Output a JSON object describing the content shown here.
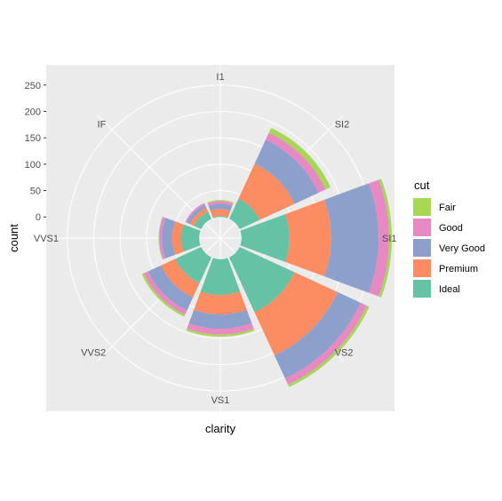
{
  "chart_data": {
    "type": "bar",
    "coordinate_system": "polar",
    "stacked": true,
    "categories": [
      "I1",
      "SI2",
      "SI1",
      "VS2",
      "VS1",
      "VVS2",
      "VVS1",
      "IF"
    ],
    "series": [
      {
        "name": "Ideal",
        "values": [
          2,
          42,
          91,
          115,
          68,
          54,
          34,
          15
        ]
      },
      {
        "name": "Premium",
        "values": [
          13,
          73,
          79,
          90,
          37,
          30,
          17,
          8
        ]
      },
      {
        "name": "Very Good",
        "values": [
          10,
          50,
          90,
          48,
          27,
          27,
          20,
          7
        ]
      },
      {
        "name": "Good",
        "values": [
          5,
          15,
          20,
          13,
          11,
          9,
          5,
          3
        ]
      },
      {
        "name": "Fair",
        "values": [
          2,
          10,
          5,
          5,
          4,
          4,
          1,
          0
        ]
      }
    ],
    "xlabel": "clarity",
    "ylabel": "count",
    "yticks": [
      0,
      50,
      100,
      150,
      200,
      250
    ],
    "ylim": [
      -40,
      290
    ],
    "grid": true,
    "legend": {
      "title": "cut",
      "position": "right",
      "entries": [
        "Fair",
        "Good",
        "Very Good",
        "Premium",
        "Ideal"
      ]
    },
    "colors": {
      "Fair": "#a6d854",
      "Good": "#e78ac3",
      "Very Good": "#8da0cb",
      "Premium": "#fc8d62",
      "Ideal": "#66c2a5",
      "panel": "#ebebeb",
      "grid": "#ffffff"
    }
  }
}
